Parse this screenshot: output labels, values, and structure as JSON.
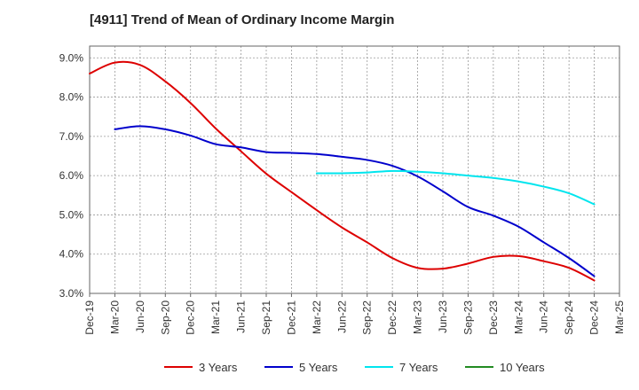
{
  "chart_data": {
    "type": "line",
    "title": "[4911]  Trend of Mean of Ordinary Income Margin",
    "xlabel": "",
    "ylabel": "",
    "x_ticks": [
      "Dec-19",
      "Mar-20",
      "Jun-20",
      "Sep-20",
      "Dec-20",
      "Mar-21",
      "Jun-21",
      "Sep-21",
      "Dec-21",
      "Mar-22",
      "Jun-22",
      "Sep-22",
      "Dec-22",
      "Mar-23",
      "Jun-23",
      "Sep-23",
      "Dec-23",
      "Mar-24",
      "Jun-24",
      "Sep-24",
      "Dec-24",
      "Mar-25"
    ],
    "y_ticks": [
      "3.0%",
      "4.0%",
      "5.0%",
      "6.0%",
      "7.0%",
      "8.0%",
      "9.0%"
    ],
    "ylim": [
      3.0,
      9.3
    ],
    "grid": true,
    "legend_position": "bottom",
    "series": [
      {
        "name": "3 Years",
        "color": "#dd0000",
        "x": [
          "Dec-19",
          "Mar-20",
          "Jun-20",
          "Sep-20",
          "Dec-20",
          "Mar-21",
          "Jun-21",
          "Sep-21",
          "Dec-21",
          "Mar-22",
          "Jun-22",
          "Sep-22",
          "Dec-22",
          "Mar-23",
          "Jun-23",
          "Sep-23",
          "Dec-23",
          "Mar-24",
          "Jun-24",
          "Sep-24",
          "Dec-24"
        ],
        "values": [
          8.6,
          8.88,
          8.82,
          8.4,
          7.85,
          7.2,
          6.62,
          6.05,
          5.58,
          5.12,
          4.68,
          4.3,
          3.9,
          3.65,
          3.63,
          3.76,
          3.93,
          3.95,
          3.82,
          3.65,
          3.33
        ]
      },
      {
        "name": "5 Years",
        "color": "#0000cc",
        "x": [
          "Mar-20",
          "Jun-20",
          "Sep-20",
          "Dec-20",
          "Mar-21",
          "Jun-21",
          "Sep-21",
          "Dec-21",
          "Mar-22",
          "Jun-22",
          "Sep-22",
          "Dec-22",
          "Mar-23",
          "Jun-23",
          "Sep-23",
          "Dec-23",
          "Mar-24",
          "Jun-24",
          "Sep-24",
          "Dec-24"
        ],
        "values": [
          7.18,
          7.26,
          7.18,
          7.02,
          6.8,
          6.72,
          6.6,
          6.58,
          6.55,
          6.48,
          6.4,
          6.25,
          5.98,
          5.6,
          5.2,
          4.98,
          4.7,
          4.3,
          3.9,
          3.44
        ]
      },
      {
        "name": "7 Years",
        "color": "#00e5ee",
        "x": [
          "Mar-22",
          "Jun-22",
          "Sep-22",
          "Dec-22",
          "Mar-23",
          "Jun-23",
          "Sep-23",
          "Dec-23",
          "Mar-24",
          "Jun-24",
          "Sep-24",
          "Dec-24"
        ],
        "values": [
          6.06,
          6.06,
          6.08,
          6.12,
          6.1,
          6.06,
          6.0,
          5.94,
          5.85,
          5.72,
          5.55,
          5.27
        ]
      },
      {
        "name": "10 Years",
        "color": "#228b22",
        "x": [],
        "values": []
      }
    ]
  }
}
